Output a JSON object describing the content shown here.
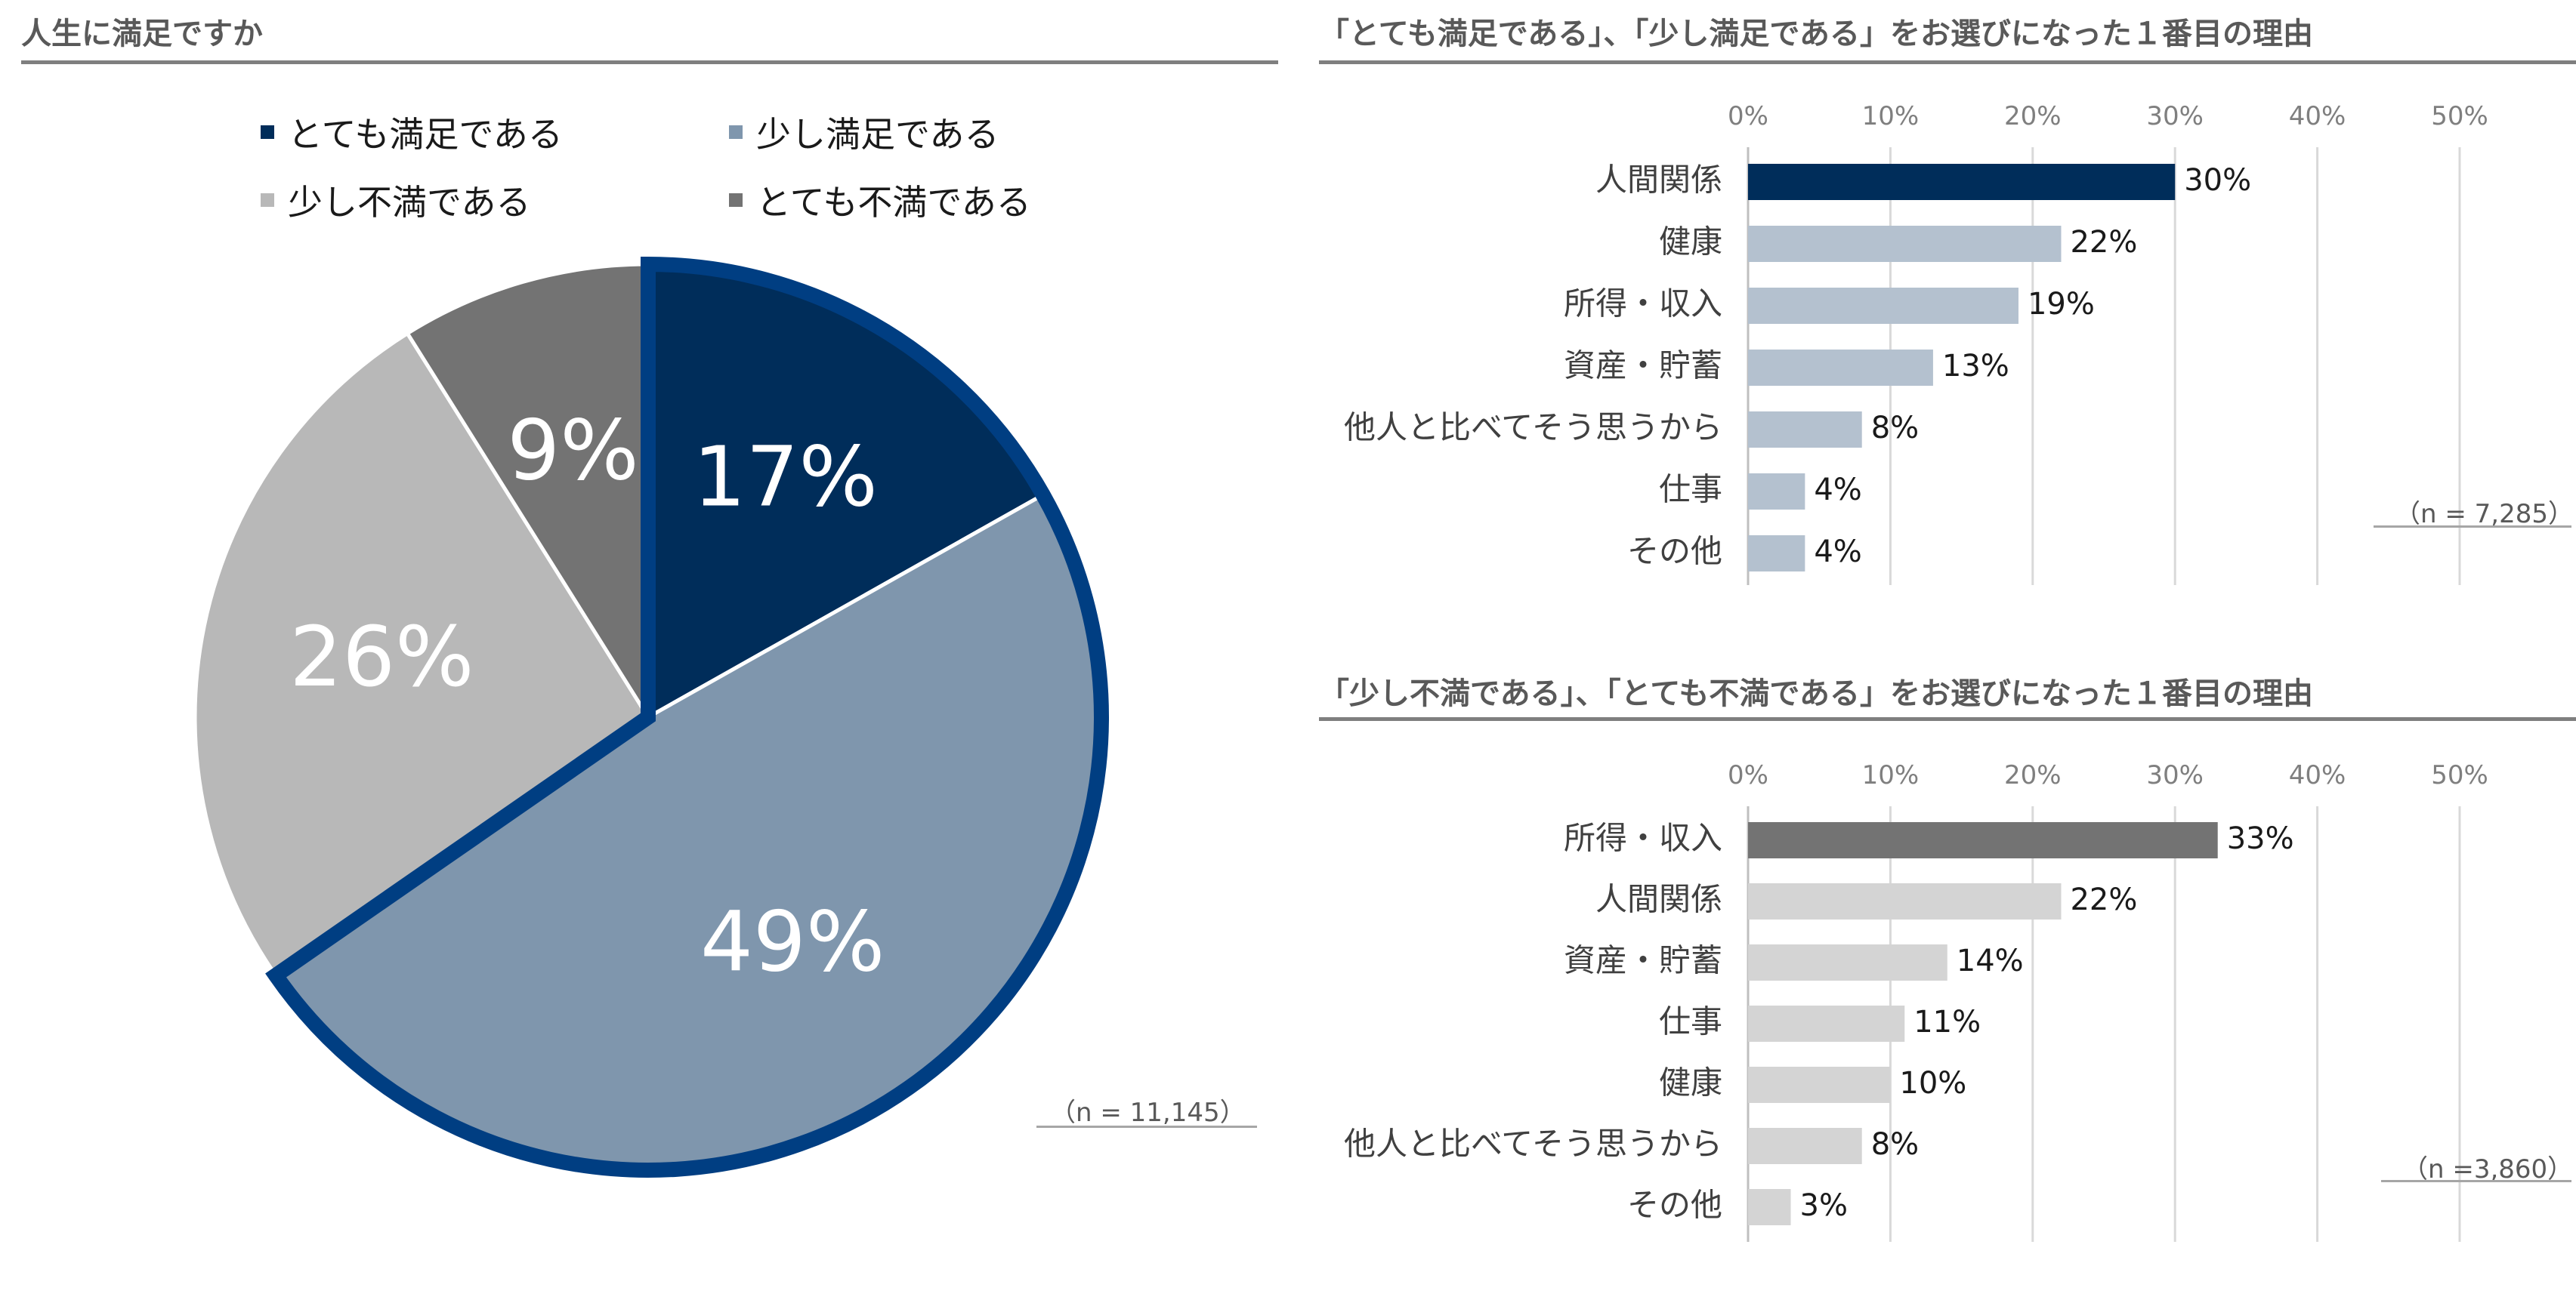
{
  "pie_section": {
    "title": "人生に満足ですか",
    "note": "（n = 11,145）"
  },
  "bar_top": {
    "title": "「とても満足である」、「少し満足である」をお選びになった１番目の理由",
    "note": "（n = 7,285）"
  },
  "bar_bottom": {
    "title": "「少し不満である」、「とても不満である」をお選びになった１番目の理由",
    "note": "（n =3,860）"
  },
  "chart_data": [
    {
      "type": "pie",
      "title": "人生に満足ですか",
      "labels": [
        "とても満足である",
        "少し満足である",
        "少し不満である",
        "とても不満である"
      ],
      "values": [
        17,
        49,
        26,
        9
      ],
      "value_labels": [
        "17%",
        "49%",
        "26%",
        "9%"
      ],
      "colors": [
        "#002d5a",
        "#7f96ad",
        "#b8b8b8",
        "#737373"
      ],
      "highlight_color": "#003e82",
      "legend": "top"
    },
    {
      "type": "bar",
      "orientation": "horizontal",
      "title": "「とても満足である」、「少し満足である」をお選びになった１番目の理由",
      "categories": [
        "人間関係",
        "健康",
        "所得・収入",
        "資産・貯蓄",
        "他人と比べてそう思うから",
        "仕事",
        "その他"
      ],
      "values": [
        30,
        22,
        19,
        13,
        8,
        4,
        4
      ],
      "value_labels": [
        "30%",
        "22%",
        "19%",
        "13%",
        "8%",
        "4%",
        "4%"
      ],
      "xlim": [
        0,
        50
      ],
      "ticks": [
        "0%",
        "10%",
        "20%",
        "30%",
        "40%",
        "50%"
      ],
      "colors": [
        "#002d5a",
        "#b4c1cf"
      ],
      "grid": true
    },
    {
      "type": "bar",
      "orientation": "horizontal",
      "title": "「少し不満である」、「とても不満である」をお選びになった１番目の理由",
      "categories": [
        "所得・収入",
        "人間関係",
        "資産・貯蓄",
        "仕事",
        "健康",
        "他人と比べてそう思うから",
        "その他"
      ],
      "values": [
        33,
        22,
        14,
        11,
        10,
        8,
        3
      ],
      "value_labels": [
        "33%",
        "22%",
        "14%",
        "11%",
        "10%",
        "8%",
        "3%"
      ],
      "xlim": [
        0,
        50
      ],
      "ticks": [
        "0%",
        "10%",
        "20%",
        "30%",
        "40%",
        "50%"
      ],
      "colors": [
        "#737373",
        "#d4d4d4"
      ],
      "grid": true
    }
  ]
}
